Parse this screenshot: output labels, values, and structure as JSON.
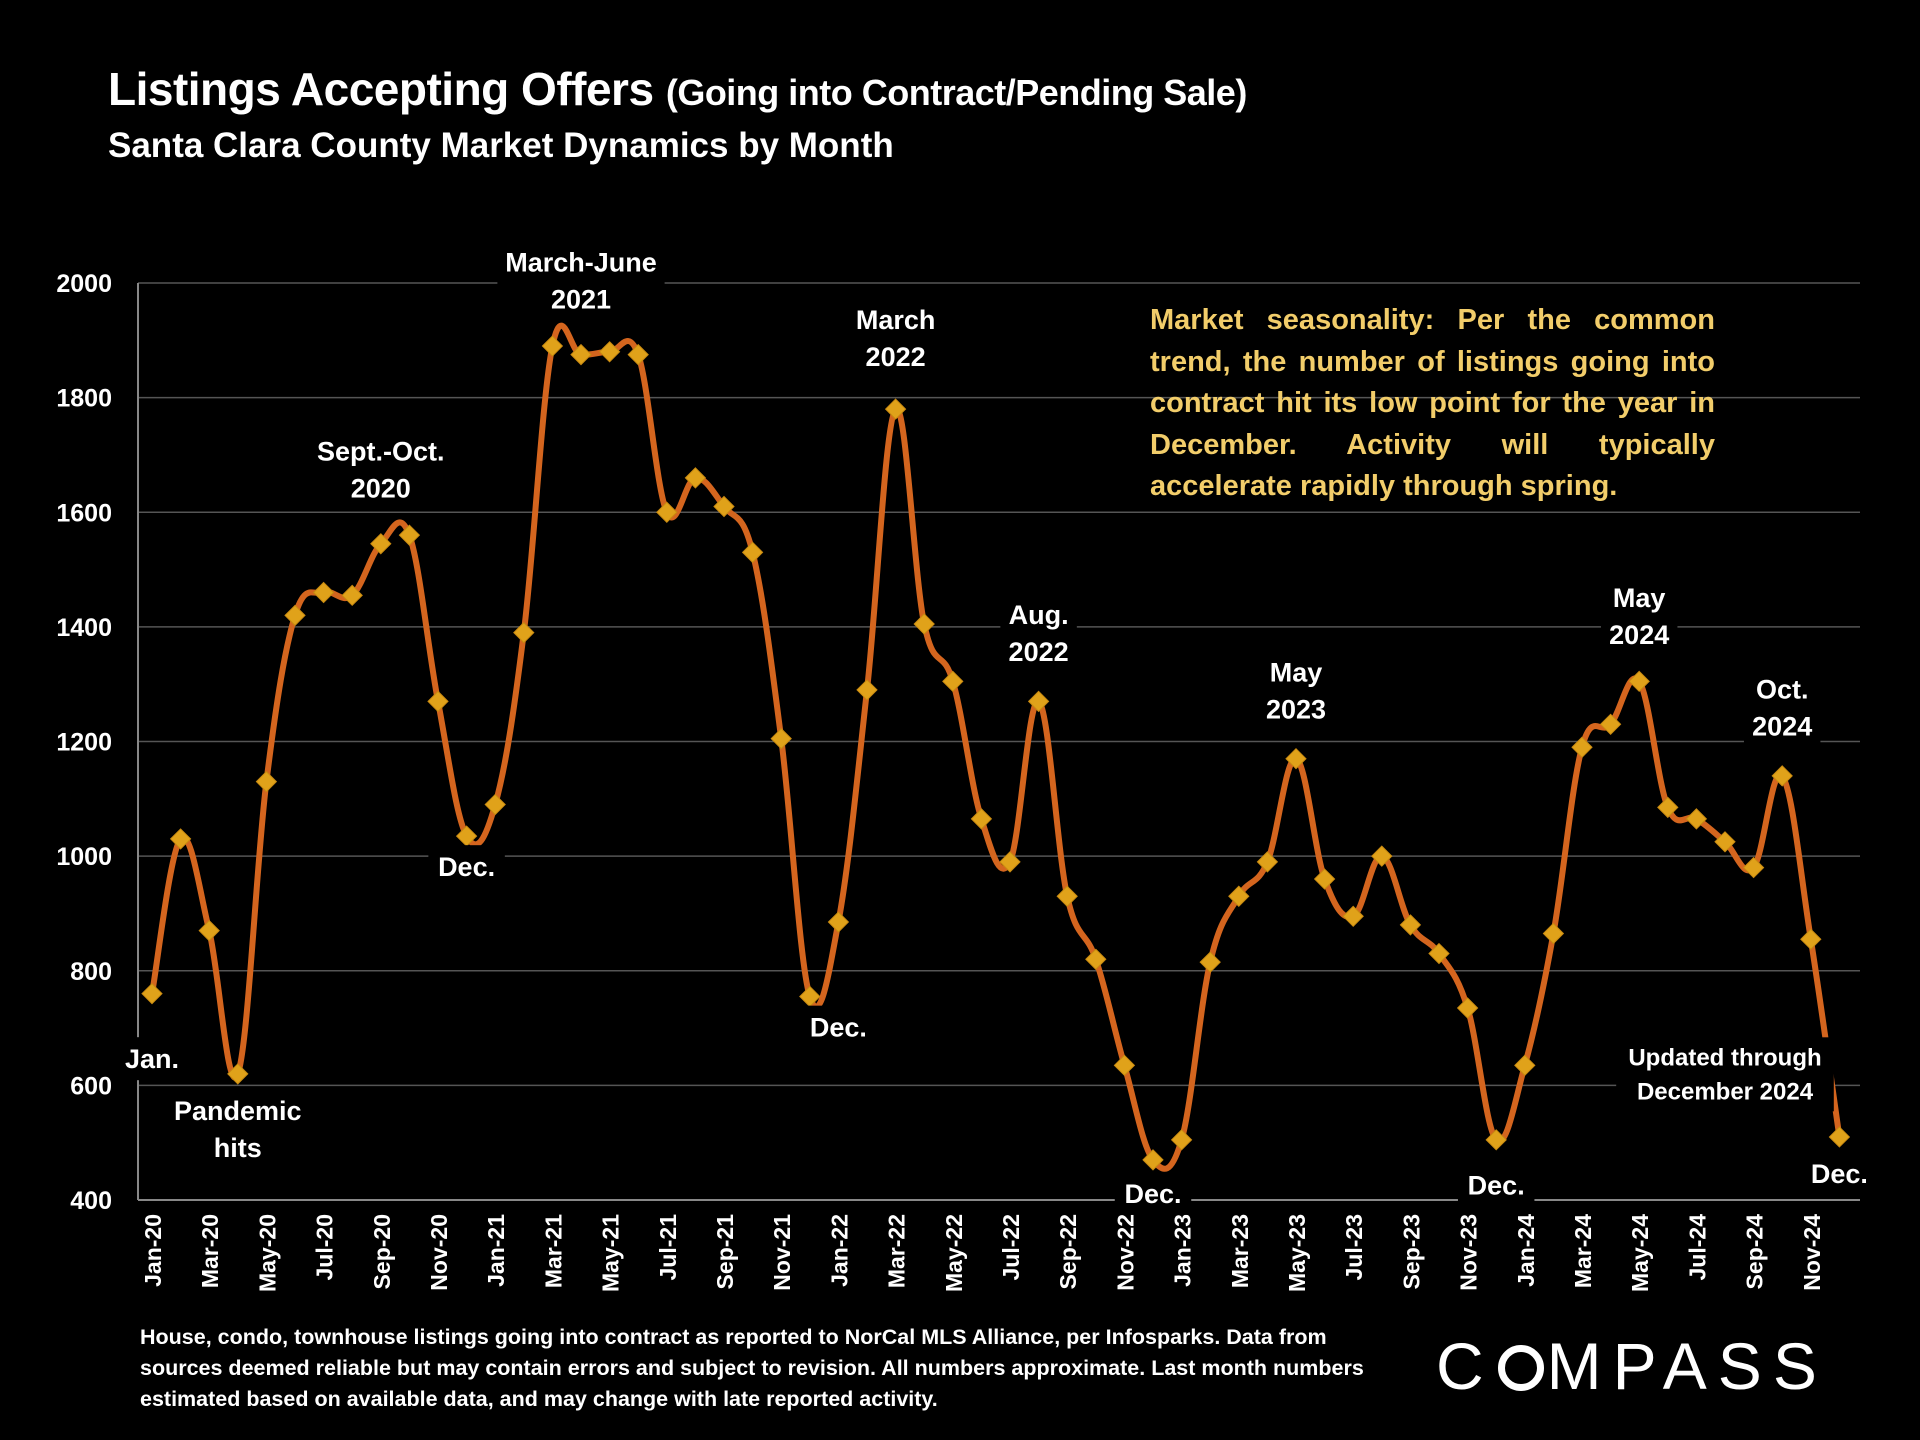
{
  "header": {
    "title": "Listings Accepting Offers",
    "title_paren": "(Going into Contract/Pending Sale)",
    "subtitle": "Santa Clara County Market Dynamics by Month"
  },
  "note": "Market seasonality:  Per the common trend, the number of listings going into contract hit its low point for the year in December. Activity will typically accelerate rapidly through spring.",
  "footnote": "House, condo, townhouse listings going into contract as reported to NorCal MLS Alliance, per Infosparks. Data from sources deemed reliable but may contain errors and subject to revision. All numbers approximate. Last month numbers estimated based on available data, and may change with late reported activity.",
  "logo": {
    "pre": "C",
    "post": "MPASS"
  },
  "colors": {
    "line": "#d4651e",
    "marker": "#e0a21a",
    "grid": "#555555",
    "note": "#f2cd6a"
  },
  "chart_data": {
    "type": "line",
    "ylim": [
      400,
      2000
    ],
    "yticks": [
      400,
      600,
      800,
      1000,
      1200,
      1400,
      1600,
      1800,
      2000
    ],
    "grid": true,
    "x": [
      "Jan-20",
      "Feb-20",
      "Mar-20",
      "Apr-20",
      "May-20",
      "Jun-20",
      "Jul-20",
      "Aug-20",
      "Sep-20",
      "Oct-20",
      "Nov-20",
      "Dec-20",
      "Jan-21",
      "Feb-21",
      "Mar-21",
      "Apr-21",
      "May-21",
      "Jun-21",
      "Jul-21",
      "Aug-21",
      "Sep-21",
      "Oct-21",
      "Nov-21",
      "Dec-21",
      "Jan-22",
      "Feb-22",
      "Mar-22",
      "Apr-22",
      "May-22",
      "Jun-22",
      "Jul-22",
      "Aug-22",
      "Sep-22",
      "Oct-22",
      "Nov-22",
      "Dec-22",
      "Jan-23",
      "Feb-23",
      "Mar-23",
      "Apr-23",
      "May-23",
      "Jun-23",
      "Jul-23",
      "Aug-23",
      "Sep-23",
      "Oct-23",
      "Nov-23",
      "Dec-23",
      "Jan-24",
      "Feb-24",
      "Mar-24",
      "Apr-24",
      "May-24",
      "Jun-24",
      "Jul-24",
      "Aug-24",
      "Sep-24",
      "Oct-24",
      "Nov-24",
      "Dec-24"
    ],
    "xtick_labels": [
      "Jan-20",
      "Mar-20",
      "May-20",
      "Jul-20",
      "Sep-20",
      "Nov-20",
      "Jan-21",
      "Mar-21",
      "May-21",
      "Jul-21",
      "Sep-21",
      "Nov-21",
      "Jan-22",
      "Mar-22",
      "May-22",
      "Jul-22",
      "Sep-22",
      "Nov-22",
      "Jan-23",
      "Mar-23",
      "May-23",
      "Jul-23",
      "Sep-23",
      "Nov-23",
      "Jan-24",
      "Mar-24",
      "May-24",
      "Jul-24",
      "Sep-24",
      "Nov-24"
    ],
    "values": [
      760,
      1030,
      870,
      620,
      1130,
      1420,
      1460,
      1455,
      1545,
      1560,
      1270,
      1035,
      1090,
      1390,
      1890,
      1875,
      1880,
      1875,
      1600,
      1660,
      1610,
      1530,
      1205,
      755,
      885,
      1290,
      1780,
      1405,
      1305,
      1065,
      990,
      1270,
      930,
      820,
      635,
      470,
      505,
      815,
      930,
      990,
      1170,
      960,
      895,
      1000,
      880,
      830,
      735,
      505,
      635,
      865,
      1190,
      1230,
      1305,
      1085,
      1065,
      1025,
      980,
      1140,
      855,
      510
    ],
    "annotations": [
      {
        "text": "Jan.",
        "x": "Jan-20",
        "y": 630,
        "lines": [
          "Jan."
        ]
      },
      {
        "text": "Pandemic hits",
        "x": "Apr-20",
        "y": 540,
        "lines": [
          "Pandemic",
          "hits"
        ]
      },
      {
        "text": "Sept.-Oct. 2020",
        "x": "Sep-20",
        "y": 1690,
        "lines": [
          "Sept.-Oct.",
          "2020"
        ]
      },
      {
        "text": "Dec.",
        "x": "Dec-20",
        "y": 965,
        "lines": [
          "Dec."
        ]
      },
      {
        "text": "March-June 2021",
        "x": "Apr-21",
        "y": 2020,
        "lines": [
          "March-June",
          "2021"
        ]
      },
      {
        "text": "Dec.",
        "x": "Jan-22",
        "y": 685,
        "lines": [
          "Dec."
        ]
      },
      {
        "text": "March 2022",
        "x": "Mar-22",
        "y": 1920,
        "lines": [
          "March",
          "2022"
        ]
      },
      {
        "text": "Aug. 2022",
        "x": "Aug-22",
        "y": 1405,
        "lines": [
          "Aug.",
          "2022"
        ]
      },
      {
        "text": "Dec.",
        "x": "Dec-22",
        "y": 395,
        "lines": [
          "Dec."
        ]
      },
      {
        "text": "May 2023",
        "x": "May-23",
        "y": 1305,
        "lines": [
          "May",
          "2023"
        ]
      },
      {
        "text": "Dec.",
        "x": "Dec-23",
        "y": 410,
        "lines": [
          "Dec."
        ]
      },
      {
        "text": "May 2024",
        "x": "May-24",
        "y": 1435,
        "lines": [
          "May",
          "2024"
        ]
      },
      {
        "text": "Oct. 2024",
        "x": "Oct-24",
        "y": 1275,
        "lines": [
          "Oct.",
          "2024"
        ]
      },
      {
        "text": "Updated through December 2024",
        "x": "Aug-24",
        "y": 635,
        "lines": [
          "Updated through",
          "December 2024"
        ],
        "small": true
      },
      {
        "text": "Dec.",
        "x": "Dec-24",
        "y": 430,
        "lines": [
          "Dec."
        ]
      }
    ]
  }
}
